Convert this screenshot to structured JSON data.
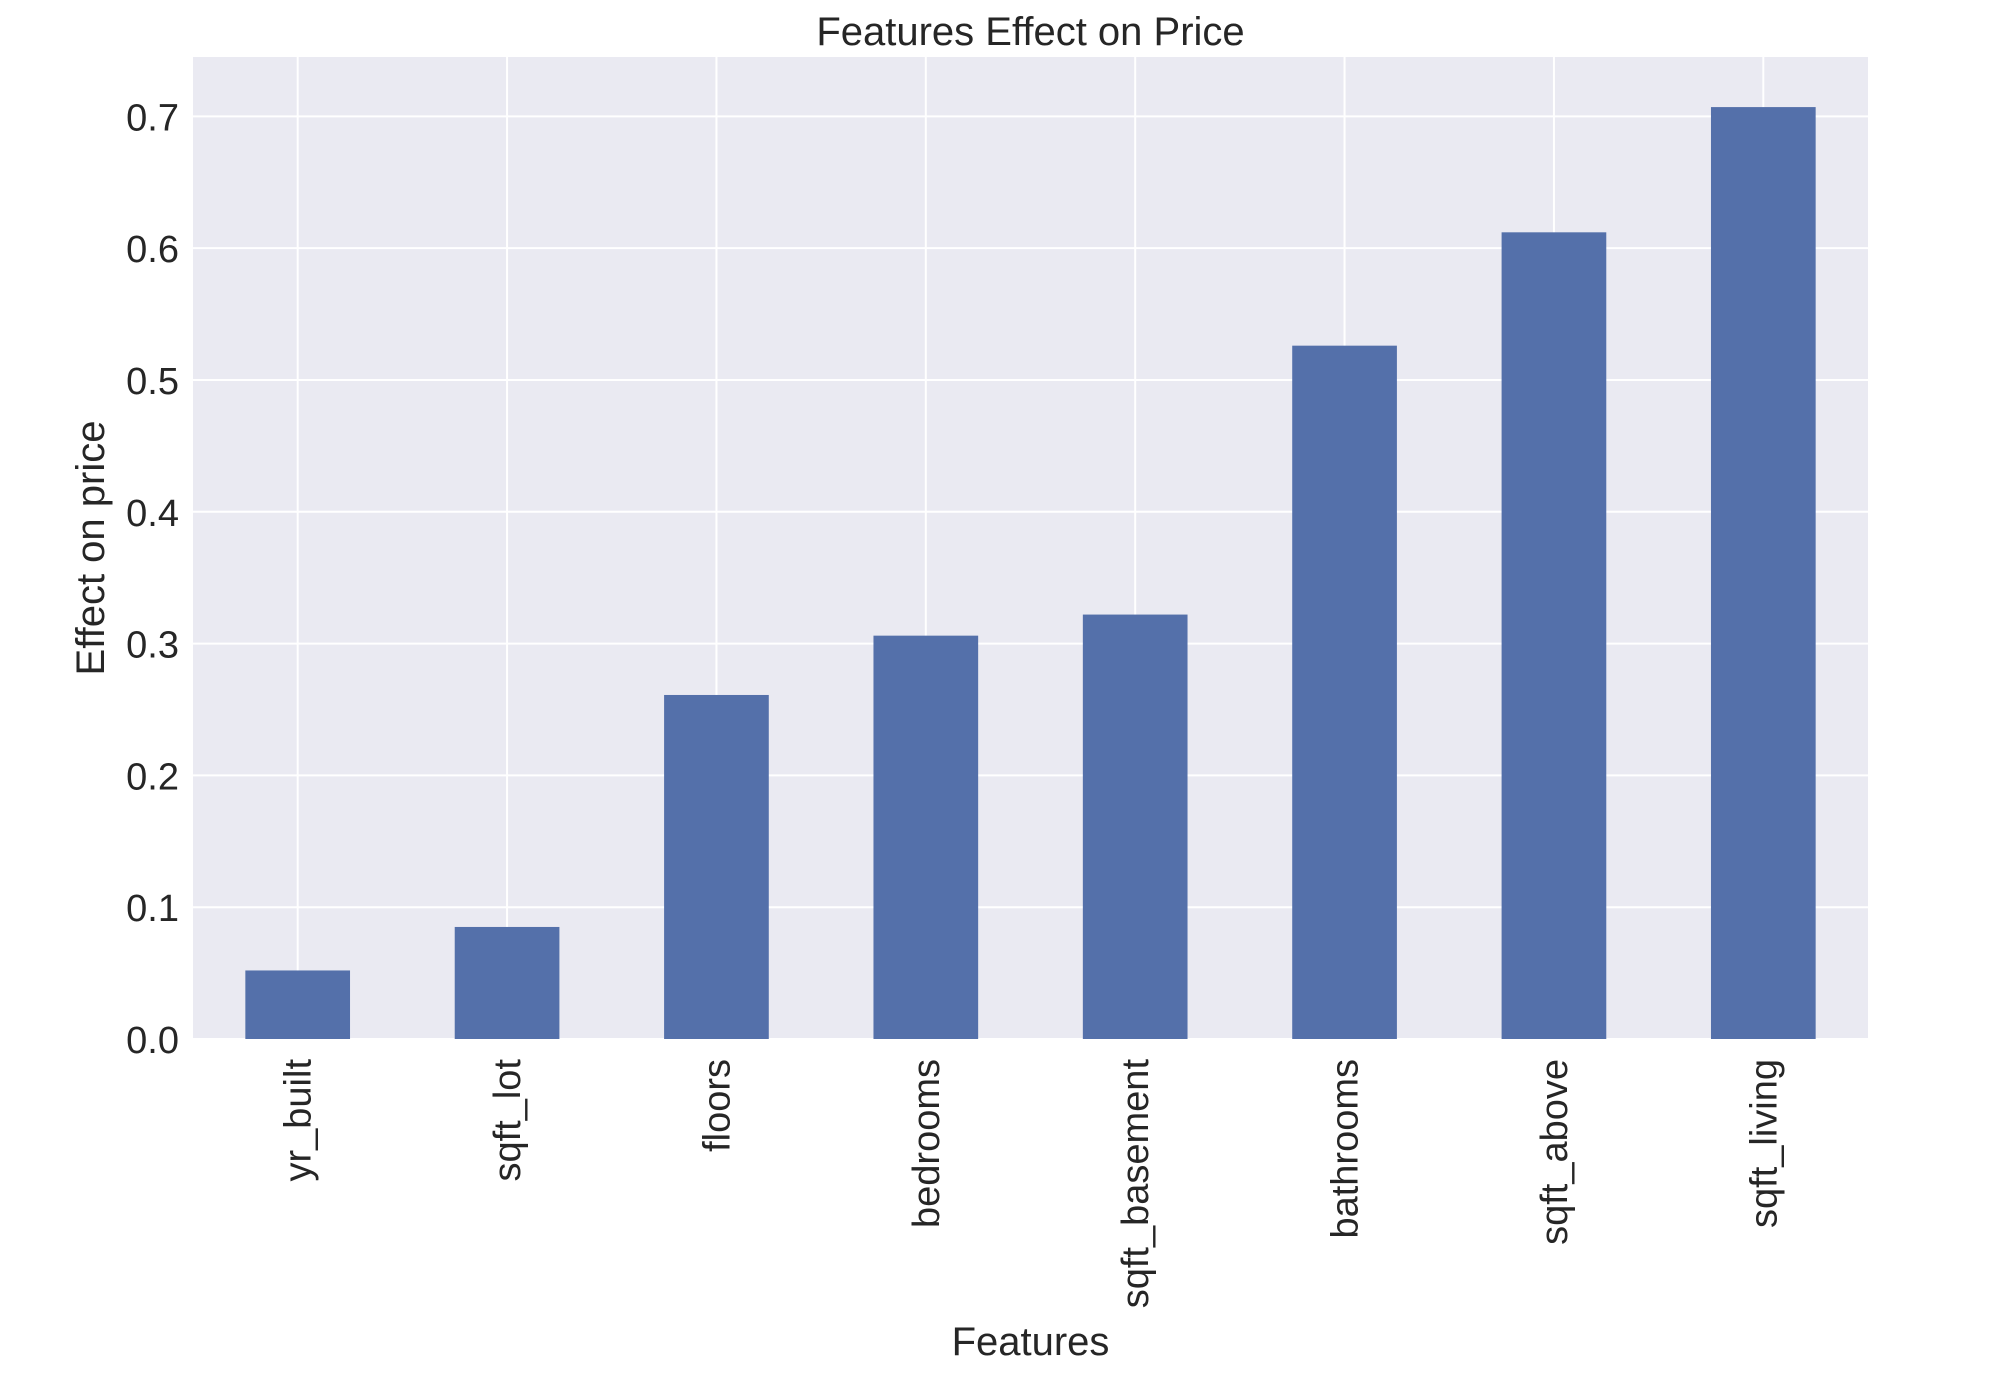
{
  "chart_data": {
    "type": "bar",
    "title": "Features Effect on Price",
    "xlabel": "Features",
    "ylabel": "Effect on price",
    "categories": [
      "yr_built",
      "sqft_lot",
      "floors",
      "bedrooms",
      "sqft_basement",
      "bathrooms",
      "sqft_above",
      "sqft_living"
    ],
    "values": [
      0.052,
      0.085,
      0.261,
      0.306,
      0.322,
      0.526,
      0.612,
      0.707
    ],
    "ylim": [
      0,
      0.745
    ],
    "yticks": [
      "0.0",
      "0.1",
      "0.2",
      "0.3",
      "0.4",
      "0.5",
      "0.6",
      "0.7"
    ],
    "grid": true,
    "colors": {
      "bar": "#5470aa",
      "plot_background": "#eaeaf2",
      "grid": "#ffffff",
      "text": "#262626"
    }
  }
}
